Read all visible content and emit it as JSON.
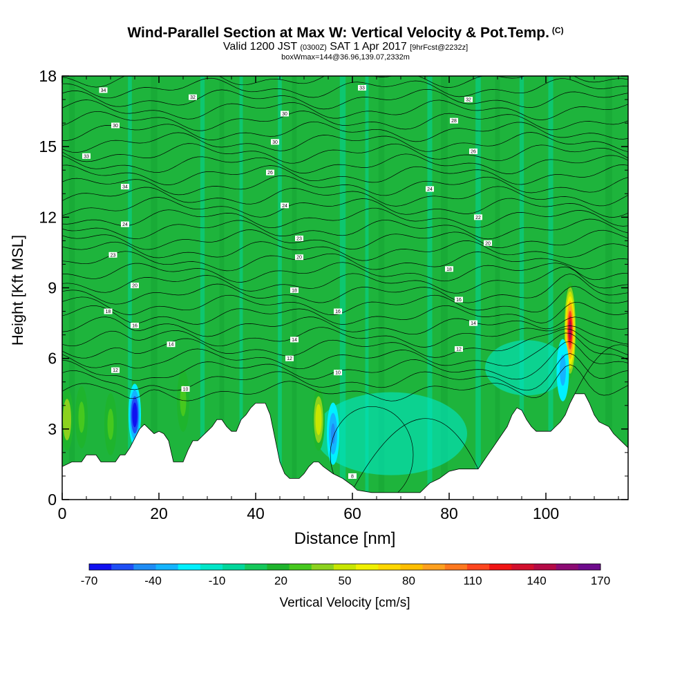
{
  "title": {
    "main": "Wind-Parallel Section at Max W: Vertical Velocity & Pot.Temp.",
    "mark": "(C)",
    "valid_prefix": "Valid 1200 JST",
    "valid_z": "(0300Z)",
    "valid_date": "SAT 1 Apr 2017",
    "fcst": "[9hrFcst@2232z]",
    "box": "boxWmax=144@36.96,139.07,2332m"
  },
  "chart_data": {
    "type": "heatmap",
    "xlabel": "Distance [nm]",
    "ylabel": "Height [Kft MSL]",
    "xlim": [
      0,
      117
    ],
    "ylim": [
      0,
      18
    ],
    "x_ticks": [
      0,
      20,
      40,
      60,
      80,
      100
    ],
    "y_ticks": [
      0,
      3,
      6,
      9,
      12,
      15,
      18
    ],
    "grid": false,
    "colorbar": {
      "label": "Vertical Velocity [cm/s]",
      "tick_labels": [
        "-70",
        "-40",
        "-10",
        "20",
        "50",
        "80",
        "110",
        "140",
        "170"
      ],
      "colors": [
        "#1010f0",
        "#1e4ef5",
        "#1e8cf5",
        "#14b4ff",
        "#00f0ff",
        "#00e6c8",
        "#00d79b",
        "#14c85a",
        "#1eb42d",
        "#46c81e",
        "#8cd21e",
        "#c8e600",
        "#f0f000",
        "#ffd700",
        "#ffbe00",
        "#ffa01e",
        "#ff781e",
        "#ff461e",
        "#f01414",
        "#d20f2d",
        "#b40a46",
        "#8c0a73",
        "#6e0a8c"
      ]
    },
    "terrain_top_kft": [
      [
        0,
        1.4
      ],
      [
        2,
        1.6
      ],
      [
        4,
        1.6
      ],
      [
        5,
        1.9
      ],
      [
        7,
        1.9
      ],
      [
        8,
        1.6
      ],
      [
        11,
        1.6
      ],
      [
        12,
        1.9
      ],
      [
        13,
        1.9
      ],
      [
        14,
        2.2
      ],
      [
        15,
        2.6
      ],
      [
        16,
        3.0
      ],
      [
        17,
        3.2
      ],
      [
        18,
        3.0
      ],
      [
        19,
        2.8
      ],
      [
        20,
        2.9
      ],
      [
        21,
        2.8
      ],
      [
        22,
        2.5
      ],
      [
        23,
        1.6
      ],
      [
        25,
        1.6
      ],
      [
        26,
        2.1
      ],
      [
        27,
        2.5
      ],
      [
        28,
        2.5
      ],
      [
        29,
        2.7
      ],
      [
        30,
        2.9
      ],
      [
        31,
        3.1
      ],
      [
        32,
        3.4
      ],
      [
        33,
        3.4
      ],
      [
        34,
        3.1
      ],
      [
        35,
        2.9
      ],
      [
        36,
        2.9
      ],
      [
        37,
        3.4
      ],
      [
        38,
        3.6
      ],
      [
        39,
        3.9
      ],
      [
        40,
        4.1
      ],
      [
        42,
        4.1
      ],
      [
        43,
        3.6
      ],
      [
        44,
        2.6
      ],
      [
        45,
        1.6
      ],
      [
        46,
        1.1
      ],
      [
        47,
        0.9
      ],
      [
        48,
        0.9
      ],
      [
        49,
        0.9
      ],
      [
        50,
        1.1
      ],
      [
        51,
        1.4
      ],
      [
        52,
        1.6
      ],
      [
        53,
        1.6
      ],
      [
        54,
        1.4
      ],
      [
        56,
        1.1
      ],
      [
        58,
        0.9
      ],
      [
        60,
        0.6
      ],
      [
        61,
        0.4
      ],
      [
        64,
        0.3
      ],
      [
        68,
        0.3
      ],
      [
        74,
        0.3
      ],
      [
        75,
        0.5
      ],
      [
        76,
        0.7
      ],
      [
        78,
        0.9
      ],
      [
        80,
        1.2
      ],
      [
        82,
        1.3
      ],
      [
        86,
        1.3
      ],
      [
        87,
        1.6
      ],
      [
        88,
        1.9
      ],
      [
        89,
        2.2
      ],
      [
        90,
        2.5
      ],
      [
        91,
        2.8
      ],
      [
        92,
        3.1
      ],
      [
        93,
        3.6
      ],
      [
        94,
        3.9
      ],
      [
        95,
        3.8
      ],
      [
        96,
        3.4
      ],
      [
        97,
        3.1
      ],
      [
        98,
        2.9
      ],
      [
        101,
        2.9
      ],
      [
        102,
        3.1
      ],
      [
        103,
        3.3
      ],
      [
        104,
        3.6
      ],
      [
        105,
        4.1
      ],
      [
        106,
        4.5
      ],
      [
        108,
        4.5
      ],
      [
        109,
        4.1
      ],
      [
        110,
        3.6
      ],
      [
        111,
        3.3
      ],
      [
        113,
        3.1
      ],
      [
        114,
        2.8
      ],
      [
        115,
        2.6
      ],
      [
        116,
        2.4
      ],
      [
        117,
        2.2
      ]
    ],
    "updraft_cores": [
      {
        "x": 1,
        "y": 3.4,
        "w": 35
      },
      {
        "x": 4,
        "y": 3.5,
        "w": 30
      },
      {
        "x": 10,
        "y": 3.2,
        "w": 30
      },
      {
        "x": 15,
        "y": 3.6,
        "w": -70
      },
      {
        "x": 25,
        "y": 4.2,
        "w": 30
      },
      {
        "x": 53,
        "y": 3.4,
        "w": 55
      },
      {
        "x": 56,
        "y": 2.8,
        "w": -45
      },
      {
        "x": 105,
        "y": 7.2,
        "w": 145
      },
      {
        "x": 103.5,
        "y": 5.5,
        "w": -30
      }
    ],
    "isentrope_labels": [
      {
        "x": 8.5,
        "y": 17.4,
        "text": "34"
      },
      {
        "x": 27,
        "y": 17.1,
        "text": "32"
      },
      {
        "x": 62,
        "y": 17.5,
        "text": "33"
      },
      {
        "x": 84,
        "y": 17.0,
        "text": "32"
      },
      {
        "x": 46,
        "y": 16.4,
        "text": "30"
      },
      {
        "x": 11,
        "y": 15.9,
        "text": "30"
      },
      {
        "x": 81,
        "y": 16.1,
        "text": "28"
      },
      {
        "x": 44,
        "y": 15.2,
        "text": "30"
      },
      {
        "x": 85,
        "y": 14.8,
        "text": "26"
      },
      {
        "x": 5,
        "y": 14.6,
        "text": "33"
      },
      {
        "x": 43,
        "y": 13.9,
        "text": "26"
      },
      {
        "x": 13,
        "y": 13.3,
        "text": "34"
      },
      {
        "x": 76,
        "y": 13.2,
        "text": "24"
      },
      {
        "x": 46,
        "y": 12.5,
        "text": "24"
      },
      {
        "x": 86,
        "y": 12.0,
        "text": "22"
      },
      {
        "x": 13,
        "y": 11.7,
        "text": "24"
      },
      {
        "x": 49,
        "y": 11.1,
        "text": "23"
      },
      {
        "x": 88,
        "y": 10.9,
        "text": "20"
      },
      {
        "x": 10.5,
        "y": 10.4,
        "text": "23"
      },
      {
        "x": 49,
        "y": 10.3,
        "text": "20"
      },
      {
        "x": 80,
        "y": 9.8,
        "text": "18"
      },
      {
        "x": 15,
        "y": 9.1,
        "text": "20"
      },
      {
        "x": 48,
        "y": 8.9,
        "text": "18"
      },
      {
        "x": 82,
        "y": 8.5,
        "text": "16"
      },
      {
        "x": 9.5,
        "y": 8.0,
        "text": "18"
      },
      {
        "x": 57,
        "y": 8.0,
        "text": "16"
      },
      {
        "x": 85,
        "y": 7.5,
        "text": "14"
      },
      {
        "x": 15,
        "y": 7.4,
        "text": "16"
      },
      {
        "x": 48,
        "y": 6.8,
        "text": "14"
      },
      {
        "x": 82,
        "y": 6.4,
        "text": "12"
      },
      {
        "x": 22.5,
        "y": 6.6,
        "text": "14"
      },
      {
        "x": 47,
        "y": 6.0,
        "text": "12"
      },
      {
        "x": 11,
        "y": 5.5,
        "text": "12"
      },
      {
        "x": 57,
        "y": 5.4,
        "text": "10"
      },
      {
        "x": 25.5,
        "y": 4.7,
        "text": "10"
      },
      {
        "x": 60,
        "y": 1.0,
        "text": "8"
      }
    ]
  }
}
